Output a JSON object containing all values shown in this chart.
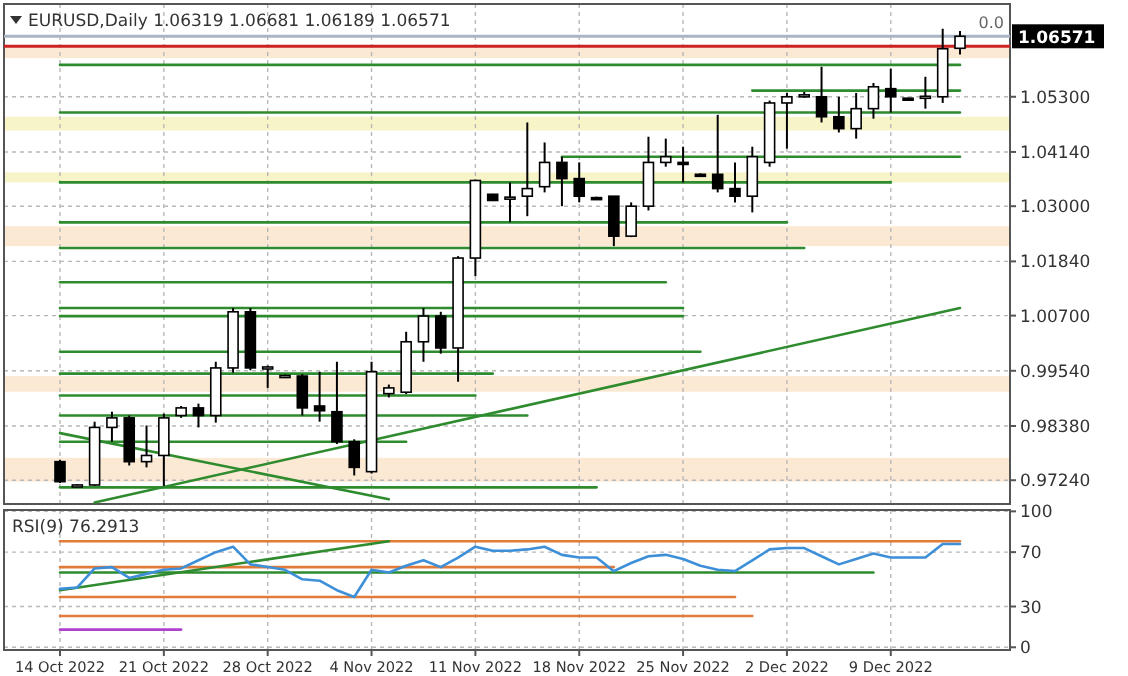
{
  "chart_data": [
    {
      "type": "candlestick",
      "title": "EURUSD,Daily 1.06319 1.06681 1.06189 1.06571",
      "categories": [
        null,
        null,
        null,
        null,
        null,
        null,
        null,
        null,
        null,
        null,
        null,
        null,
        null,
        null,
        null,
        null,
        null,
        null,
        null,
        null,
        null,
        null,
        null,
        null,
        null,
        null,
        null,
        null,
        null,
        null,
        null,
        null,
        null,
        null,
        null,
        null,
        null,
        null,
        null,
        null,
        null,
        null,
        null,
        null,
        null,
        null,
        null,
        null,
        null,
        null,
        null,
        null,
        null
      ],
      "ohlc": [
        [
          0.9763,
          0.9767,
          0.9718,
          0.9721
        ],
        [
          0.9713,
          0.9716,
          0.971,
          0.9714
        ],
        [
          0.9714,
          0.9847,
          0.9712,
          0.9835
        ],
        [
          0.9835,
          0.9868,
          0.9805,
          0.9855
        ],
        [
          0.9855,
          0.986,
          0.9755,
          0.9763
        ],
        [
          0.9763,
          0.9839,
          0.9751,
          0.9776
        ],
        [
          0.9776,
          0.9864,
          0.9712,
          0.9855
        ],
        [
          0.986,
          0.988,
          0.9855,
          0.9876
        ],
        [
          0.9876,
          0.9885,
          0.9835,
          0.986
        ],
        [
          0.986,
          0.9973,
          0.9845,
          0.996
        ],
        [
          0.996,
          1.0086,
          0.995,
          1.0078
        ],
        [
          1.0078,
          1.0086,
          0.9955,
          0.996
        ],
        [
          0.996,
          0.9965,
          0.9918,
          0.9962
        ],
        [
          0.9943,
          0.9946,
          0.994,
          0.9944
        ],
        [
          0.9943,
          0.9947,
          0.986,
          0.9876
        ],
        [
          0.988,
          0.9952,
          0.9847,
          0.987
        ],
        [
          0.9868,
          0.9973,
          0.98,
          0.9805
        ],
        [
          0.9805,
          0.981,
          0.9734,
          0.9751
        ],
        [
          0.9742,
          0.9973,
          0.9738,
          0.9952
        ],
        [
          0.9906,
          0.9925,
          0.9898,
          0.9918
        ],
        [
          0.9909,
          1.0036,
          0.9905,
          1.0015
        ],
        [
          1.0015,
          1.0086,
          0.9973,
          1.0069
        ],
        [
          1.0069,
          1.0078,
          0.999,
          1.0002
        ],
        [
          1.0002,
          1.0195,
          0.9931,
          1.0191
        ],
        [
          1.0191,
          1.0356,
          1.0153,
          1.0354
        ],
        [
          1.0325,
          1.0326,
          1.0311,
          1.0312
        ],
        [
          1.0317,
          1.035,
          1.0266,
          1.0319
        ],
        [
          1.0321,
          1.0476,
          1.0279,
          1.0337
        ],
        [
          1.0341,
          1.0434,
          1.0329,
          1.0392
        ],
        [
          1.0392,
          1.0404,
          1.03,
          1.0358
        ],
        [
          1.0358,
          1.0392,
          1.0308,
          1.0321
        ],
        [
          1.0318,
          1.032,
          1.0316,
          1.0317
        ],
        [
          1.0321,
          1.0321,
          1.0216,
          1.0237
        ],
        [
          1.0237,
          1.0308,
          1.0235,
          1.03
        ],
        [
          1.03,
          1.0446,
          1.0291,
          1.0392
        ],
        [
          1.0392,
          1.0442,
          1.0383,
          1.0404
        ],
        [
          1.0392,
          1.0425,
          1.035,
          1.039
        ],
        [
          1.0367,
          1.0369,
          1.0365,
          1.0366
        ],
        [
          1.0367,
          1.0492,
          1.0329,
          1.0337
        ],
        [
          1.0337,
          1.0392,
          1.0308,
          1.0321
        ],
        [
          1.0321,
          1.0425,
          1.0287,
          1.0404
        ],
        [
          1.0392,
          1.0522,
          1.0383,
          1.0517
        ],
        [
          1.0517,
          1.0538,
          1.0421,
          1.053
        ],
        [
          1.053,
          1.054,
          1.0528,
          1.0534
        ],
        [
          1.053,
          1.0593,
          1.0476,
          1.0488
        ],
        [
          1.0488,
          1.053,
          1.0455,
          1.0463
        ],
        [
          1.0463,
          1.0538,
          1.0442,
          1.0505
        ],
        [
          1.0505,
          1.0559,
          1.0484,
          1.0551
        ],
        [
          1.0547,
          1.0589,
          1.0497,
          1.053
        ],
        [
          1.0527,
          1.0528,
          1.0524,
          1.0526
        ],
        [
          1.0529,
          1.0572,
          1.0505,
          1.0531
        ],
        [
          1.053,
          1.0673,
          1.0517,
          1.0631
        ],
        [
          1.06319,
          1.06681,
          1.06189,
          1.06571
        ]
      ],
      "ylim": [
        0.9674,
        1.0725
      ],
      "yticks": [
        {
          "value": 1.053,
          "label": "1.05300"
        },
        {
          "value": 1.0414,
          "label": "1.04140"
        },
        {
          "value": 1.03,
          "label": "1.03000"
        },
        {
          "value": 1.0184,
          "label": "1.01840"
        },
        {
          "value": 1.007,
          "label": "1.00700"
        },
        {
          "value": 0.9954,
          "label": "0.99540"
        },
        {
          "value": 0.9838,
          "label": "0.98380"
        },
        {
          "value": 0.9724,
          "label": "0.97240"
        }
      ],
      "grid": true,
      "tick_labels": "y",
      "bands": [
        {
          "axis": "y",
          "from": 1.0611,
          "to": 1.0636,
          "color": "#fbe0c0"
        },
        {
          "axis": "y",
          "from": 1.0459,
          "to": 1.0488,
          "color": "#f3efb0"
        },
        {
          "axis": "y",
          "from": 1.035,
          "to": 1.0371,
          "color": "#f3efb0"
        },
        {
          "axis": "y",
          "from": 1.0216,
          "to": 1.0258,
          "color": "#fbe0c0"
        },
        {
          "axis": "y",
          "from": 0.991,
          "to": 0.9943,
          "color": "#fbe0c0"
        },
        {
          "axis": "y",
          "from": 0.9721,
          "to": 0.9771,
          "color": "#fbe0c0"
        }
      ],
      "ref_lines": [
        {
          "axis": "y",
          "value": 1.06571,
          "label": "1.06571",
          "color": "#aab4c4"
        },
        {
          "axis": "y",
          "value": 1.0636,
          "color": "#cc2222"
        }
      ],
      "annotations": [
        "0.0"
      ],
      "series": [
        {
          "type": "line",
          "color": "#2e8b2e",
          "values": [
            1.0597,
            null,
            null,
            null,
            null,
            null,
            null,
            null,
            null,
            null,
            null,
            null,
            null,
            null,
            null,
            null,
            null,
            null,
            null,
            null,
            null,
            null,
            null,
            null,
            null,
            null,
            null,
            null,
            null,
            null,
            null,
            null,
            null,
            null,
            null,
            null,
            null,
            null,
            null,
            null,
            null,
            null,
            null,
            null,
            null,
            null,
            null,
            null,
            null,
            null,
            null,
            null,
            1.0597
          ]
        },
        {
          "type": "line",
          "color": "#2e8b2e",
          "values": [
            null,
            null,
            null,
            null,
            null,
            null,
            null,
            null,
            null,
            null,
            null,
            null,
            null,
            null,
            null,
            null,
            null,
            null,
            null,
            null,
            null,
            null,
            null,
            null,
            null,
            null,
            null,
            null,
            null,
            null,
            null,
            null,
            null,
            null,
            null,
            null,
            null,
            null,
            null,
            null,
            1.0543,
            null,
            null,
            null,
            null,
            null,
            null,
            null,
            null,
            null,
            null,
            null,
            1.0543
          ]
        },
        {
          "type": "line",
          "color": "#2e8b2e",
          "values": [
            1.0497,
            null,
            null,
            null,
            null,
            null,
            null,
            null,
            null,
            null,
            null,
            null,
            null,
            null,
            null,
            null,
            null,
            null,
            null,
            null,
            null,
            null,
            null,
            null,
            null,
            null,
            null,
            null,
            null,
            null,
            null,
            null,
            null,
            null,
            null,
            null,
            null,
            null,
            null,
            null,
            null,
            null,
            null,
            null,
            null,
            null,
            null,
            null,
            null,
            null,
            null,
            null,
            1.0497
          ]
        },
        {
          "type": "line",
          "color": "#2e8b2e",
          "values": [
            null,
            null,
            null,
            null,
            null,
            null,
            null,
            null,
            null,
            null,
            null,
            null,
            null,
            null,
            null,
            null,
            null,
            null,
            null,
            null,
            null,
            null,
            null,
            null,
            null,
            null,
            null,
            null,
            null,
            1.0404,
            null,
            null,
            null,
            null,
            null,
            null,
            null,
            null,
            null,
            null,
            null,
            null,
            null,
            null,
            null,
            null,
            null,
            null,
            null,
            null,
            null,
            null,
            1.0404
          ]
        },
        {
          "type": "line",
          "color": "#2e8b2e",
          "values": [
            1.035,
            null,
            null,
            null,
            null,
            null,
            null,
            null,
            null,
            null,
            null,
            null,
            null,
            null,
            null,
            null,
            null,
            null,
            null,
            null,
            null,
            null,
            null,
            null,
            null,
            null,
            null,
            null,
            null,
            null,
            null,
            null,
            null,
            null,
            null,
            null,
            null,
            null,
            null,
            null,
            null,
            null,
            null,
            null,
            null,
            null,
            null,
            null,
            1.035,
            null,
            null,
            null,
            null
          ]
        },
        {
          "type": "line",
          "color": "#2e8b2e",
          "values": [
            1.0266,
            null,
            null,
            null,
            null,
            null,
            null,
            null,
            null,
            null,
            null,
            null,
            null,
            null,
            null,
            null,
            null,
            null,
            null,
            null,
            null,
            null,
            null,
            null,
            null,
            null,
            null,
            null,
            null,
            null,
            null,
            null,
            null,
            null,
            null,
            null,
            null,
            null,
            null,
            null,
            null,
            null,
            1.0266,
            null,
            null,
            null,
            null,
            null,
            null,
            null,
            null,
            null,
            null
          ]
        },
        {
          "type": "line",
          "color": "#2e8b2e",
          "values": [
            1.0212,
            null,
            null,
            null,
            null,
            null,
            null,
            null,
            null,
            null,
            null,
            null,
            null,
            null,
            null,
            null,
            null,
            null,
            null,
            null,
            null,
            null,
            null,
            null,
            null,
            null,
            null,
            null,
            null,
            null,
            null,
            null,
            null,
            null,
            null,
            null,
            null,
            null,
            null,
            null,
            null,
            null,
            null,
            1.0212,
            null,
            null,
            null,
            null,
            null,
            null,
            null,
            null,
            null
          ]
        },
        {
          "type": "line",
          "color": "#2e8b2e",
          "values": [
            1.014,
            null,
            null,
            null,
            null,
            null,
            null,
            null,
            null,
            null,
            null,
            null,
            null,
            null,
            null,
            null,
            null,
            null,
            null,
            null,
            null,
            null,
            null,
            null,
            null,
            null,
            null,
            null,
            null,
            null,
            null,
            null,
            null,
            null,
            null,
            1.014,
            null,
            null,
            null,
            null,
            null,
            null,
            null,
            null,
            null,
            null,
            null,
            null,
            null,
            null,
            null,
            null,
            null
          ]
        },
        {
          "type": "line",
          "color": "#2e8b2e",
          "values": [
            1.0086,
            null,
            null,
            null,
            null,
            null,
            null,
            null,
            null,
            null,
            null,
            null,
            null,
            null,
            null,
            null,
            null,
            null,
            null,
            null,
            null,
            null,
            null,
            null,
            null,
            null,
            null,
            null,
            null,
            null,
            null,
            null,
            null,
            null,
            null,
            null,
            1.0086,
            null,
            null,
            null,
            null,
            null,
            null,
            null,
            null,
            null,
            null,
            null,
            null,
            null,
            null,
            null,
            null
          ]
        },
        {
          "type": "line",
          "color": "#2e8b2e",
          "values": [
            1.0069,
            null,
            null,
            null,
            null,
            null,
            null,
            null,
            null,
            null,
            null,
            null,
            null,
            null,
            null,
            null,
            null,
            null,
            null,
            null,
            null,
            null,
            null,
            null,
            null,
            null,
            null,
            null,
            null,
            null,
            null,
            null,
            null,
            null,
            null,
            null,
            1.0069,
            null,
            null,
            null,
            null,
            null,
            null,
            null,
            null,
            null,
            null,
            null,
            null,
            null,
            null,
            null,
            null
          ]
        },
        {
          "type": "line",
          "color": "#2e8b2e",
          "values": [
            0.9994,
            null,
            null,
            null,
            null,
            null,
            null,
            null,
            null,
            null,
            null,
            null,
            null,
            null,
            null,
            null,
            null,
            null,
            null,
            null,
            null,
            null,
            null,
            null,
            null,
            null,
            null,
            null,
            null,
            null,
            null,
            null,
            null,
            null,
            null,
            null,
            null,
            0.9994,
            null,
            null,
            null,
            null,
            null,
            null,
            null,
            null,
            null,
            null,
            null,
            null,
            null,
            null,
            null
          ]
        },
        {
          "type": "line",
          "color": "#2e8b2e",
          "values": [
            0.9948,
            null,
            null,
            null,
            null,
            null,
            null,
            null,
            null,
            null,
            null,
            null,
            null,
            null,
            null,
            null,
            null,
            null,
            null,
            null,
            null,
            null,
            null,
            null,
            null,
            0.9948,
            null,
            null,
            null,
            null,
            null,
            null,
            null,
            null,
            null,
            null,
            null,
            null,
            null,
            null,
            null,
            null,
            null,
            null,
            null,
            null,
            null,
            null,
            null,
            null,
            null,
            null,
            null
          ]
        },
        {
          "type": "line",
          "color": "#2e8b2e",
          "values": [
            0.9902,
            null,
            null,
            null,
            null,
            null,
            null,
            null,
            null,
            null,
            null,
            null,
            null,
            null,
            null,
            null,
            null,
            null,
            null,
            null,
            null,
            null,
            null,
            null,
            0.9902,
            null,
            null,
            null,
            null,
            null,
            null,
            null,
            null,
            null,
            null,
            null,
            null,
            null,
            null,
            null,
            null,
            null,
            null,
            null,
            null,
            null,
            null,
            null,
            null,
            null,
            null,
            null,
            null
          ]
        },
        {
          "type": "line",
          "color": "#2e8b2e",
          "values": [
            0.986,
            null,
            null,
            null,
            null,
            null,
            null,
            null,
            null,
            null,
            null,
            null,
            null,
            null,
            null,
            null,
            null,
            null,
            null,
            null,
            null,
            null,
            null,
            null,
            null,
            null,
            null,
            0.986,
            null,
            null,
            null,
            null,
            null,
            null,
            null,
            null,
            null,
            null,
            null,
            null,
            null,
            null,
            null,
            null,
            null,
            null,
            null,
            null,
            null,
            null,
            null,
            null,
            null
          ]
        },
        {
          "type": "line",
          "color": "#2e8b2e",
          "values": [
            0.9805,
            null,
            null,
            null,
            null,
            null,
            null,
            null,
            null,
            null,
            null,
            null,
            null,
            null,
            null,
            null,
            null,
            null,
            null,
            null,
            0.9805,
            null,
            null,
            null,
            null,
            null,
            null,
            null,
            null,
            null,
            null,
            null,
            null,
            null,
            null,
            null,
            null,
            null,
            null,
            null,
            null,
            null,
            null,
            null,
            null,
            null,
            null,
            null,
            null,
            null,
            null,
            null,
            null
          ]
        },
        {
          "type": "line",
          "color": "#2e8b2e",
          "values": [
            0.9709,
            null,
            null,
            null,
            null,
            null,
            null,
            null,
            null,
            null,
            null,
            null,
            null,
            null,
            null,
            null,
            null,
            null,
            null,
            null,
            null,
            null,
            null,
            null,
            null,
            null,
            null,
            null,
            null,
            null,
            null,
            0.9709,
            null,
            null,
            null,
            null,
            null,
            null,
            null,
            null,
            null,
            null,
            null,
            null,
            null,
            null,
            null,
            null,
            null,
            null,
            null,
            null,
            null
          ]
        },
        {
          "type": "line",
          "color": "#2e8b2e",
          "values": [
            null,
            null,
            0.9677,
            null,
            null,
            null,
            null,
            null,
            null,
            null,
            null,
            null,
            null,
            null,
            null,
            null,
            null,
            null,
            null,
            null,
            null,
            null,
            null,
            null,
            null,
            null,
            null,
            null,
            null,
            null,
            null,
            null,
            null,
            null,
            null,
            null,
            null,
            null,
            null,
            null,
            null,
            null,
            null,
            null,
            null,
            null,
            null,
            null,
            null,
            null,
            null,
            null,
            1.0086
          ]
        },
        {
          "type": "line",
          "color": "#2e8b2e",
          "values": [
            0.9823,
            null,
            null,
            null,
            null,
            null,
            null,
            null,
            null,
            null,
            null,
            null,
            null,
            null,
            null,
            null,
            null,
            null,
            null,
            0.9684,
            null,
            null,
            null,
            null,
            null,
            null,
            null,
            null,
            null,
            null,
            null,
            null,
            null,
            null,
            null,
            null,
            null,
            null,
            null,
            null,
            null,
            null,
            null,
            null,
            null,
            null,
            null,
            null,
            null,
            null,
            null,
            null,
            null
          ]
        }
      ]
    },
    {
      "type": "line",
      "title": "RSI(9) 76.2913",
      "categories": [
        "14 Oct 2022",
        null,
        null,
        null,
        null,
        null,
        "21 Oct 2022",
        null,
        null,
        null,
        null,
        null,
        "28 Oct 2022",
        null,
        null,
        null,
        null,
        null,
        "4 Nov 2022",
        null,
        null,
        null,
        null,
        null,
        "11 Nov 2022",
        null,
        null,
        null,
        null,
        null,
        "18 Nov 2022",
        null,
        null,
        null,
        null,
        null,
        "25 Nov 2022",
        null,
        null,
        null,
        null,
        null,
        "2 Dec 2022",
        null,
        null,
        null,
        null,
        null,
        "9 Dec 2022",
        null,
        null,
        null,
        null
      ],
      "ylim": [
        -2,
        101
      ],
      "yticks": [
        0,
        30,
        70,
        100
      ],
      "grid": true,
      "series": [
        {
          "color": "#e07b39",
          "values": [
            78,
            null,
            null,
            null,
            null,
            null,
            null,
            null,
            null,
            null,
            null,
            null,
            null,
            null,
            null,
            null,
            null,
            null,
            null,
            null,
            null,
            null,
            null,
            null,
            null,
            null,
            null,
            null,
            null,
            null,
            null,
            null,
            null,
            null,
            null,
            null,
            null,
            null,
            null,
            null,
            null,
            null,
            null,
            null,
            null,
            null,
            null,
            null,
            null,
            null,
            null,
            null,
            78
          ]
        },
        {
          "color": "#e07b39",
          "values": [
            59,
            null,
            null,
            null,
            null,
            null,
            null,
            null,
            null,
            null,
            null,
            null,
            null,
            null,
            null,
            null,
            null,
            null,
            null,
            null,
            null,
            null,
            null,
            null,
            null,
            null,
            null,
            null,
            null,
            null,
            null,
            null,
            59,
            null,
            null,
            null,
            null,
            null,
            null,
            null,
            null,
            null,
            null,
            null,
            null,
            null,
            null,
            null,
            null,
            null,
            null,
            null,
            null
          ]
        },
        {
          "color": "#e07b39",
          "values": [
            37,
            null,
            null,
            null,
            null,
            null,
            null,
            null,
            null,
            null,
            null,
            null,
            null,
            null,
            null,
            null,
            null,
            null,
            null,
            null,
            null,
            null,
            null,
            null,
            null,
            null,
            null,
            null,
            null,
            null,
            null,
            null,
            null,
            null,
            null,
            null,
            null,
            null,
            null,
            37,
            null,
            null,
            null,
            null,
            null,
            null,
            null,
            null,
            null,
            null,
            null,
            null,
            null
          ]
        },
        {
          "color": "#e07b39",
          "values": [
            23,
            null,
            null,
            null,
            null,
            null,
            null,
            null,
            null,
            null,
            null,
            null,
            null,
            null,
            null,
            null,
            null,
            null,
            null,
            null,
            null,
            null,
            null,
            null,
            null,
            null,
            null,
            null,
            null,
            null,
            null,
            null,
            null,
            null,
            null,
            null,
            null,
            null,
            null,
            null,
            23,
            null,
            null,
            null,
            null,
            null,
            null,
            null,
            null,
            null,
            null,
            null,
            null
          ]
        },
        {
          "color": "#b040d0",
          "values": [
            13,
            null,
            null,
            null,
            null,
            null,
            null,
            13,
            null,
            null,
            null,
            null,
            null,
            null,
            null,
            null,
            null,
            null,
            null,
            null,
            null,
            null,
            null,
            null,
            null,
            null,
            null,
            null,
            null,
            null,
            null,
            null,
            null,
            null,
            null,
            null,
            null,
            null,
            null,
            null,
            null,
            null,
            null,
            null,
            null,
            null,
            null,
            null,
            null,
            null,
            null,
            null,
            null
          ]
        },
        {
          "color": "#2e8b2e",
          "values": [
            55,
            null,
            null,
            null,
            null,
            null,
            null,
            null,
            null,
            null,
            null,
            null,
            null,
            null,
            null,
            null,
            null,
            null,
            null,
            null,
            null,
            null,
            null,
            null,
            null,
            null,
            null,
            null,
            null,
            null,
            null,
            null,
            null,
            null,
            null,
            null,
            null,
            null,
            null,
            null,
            null,
            null,
            null,
            null,
            null,
            null,
            null,
            55,
            null,
            null,
            null,
            null,
            null
          ]
        },
        {
          "color": "#2e8b2e",
          "values": [
            42,
            null,
            null,
            null,
            null,
            null,
            null,
            null,
            null,
            null,
            null,
            null,
            null,
            null,
            null,
            null,
            null,
            null,
            null,
            78,
            null,
            null,
            null,
            null,
            null,
            null,
            null,
            null,
            null,
            null,
            null,
            null,
            null,
            null,
            null,
            null,
            null,
            null,
            null,
            null,
            null,
            null,
            null,
            null,
            null,
            null,
            null,
            null,
            null,
            null,
            null,
            null,
            null
          ]
        },
        {
          "color": "#3d8fd8",
          "values": [
            43,
            44,
            58,
            59,
            51,
            54,
            57,
            58,
            64,
            70,
            74,
            61,
            59,
            57,
            50,
            49,
            42,
            37,
            57,
            55,
            60,
            64,
            59,
            66,
            74,
            71,
            71,
            72,
            74,
            68,
            66,
            66,
            56,
            62,
            67,
            68,
            65,
            60,
            57,
            56,
            64,
            72,
            73,
            73,
            67,
            61,
            65,
            69,
            66,
            66,
            66,
            76,
            76
          ]
        }
      ]
    }
  ]
}
